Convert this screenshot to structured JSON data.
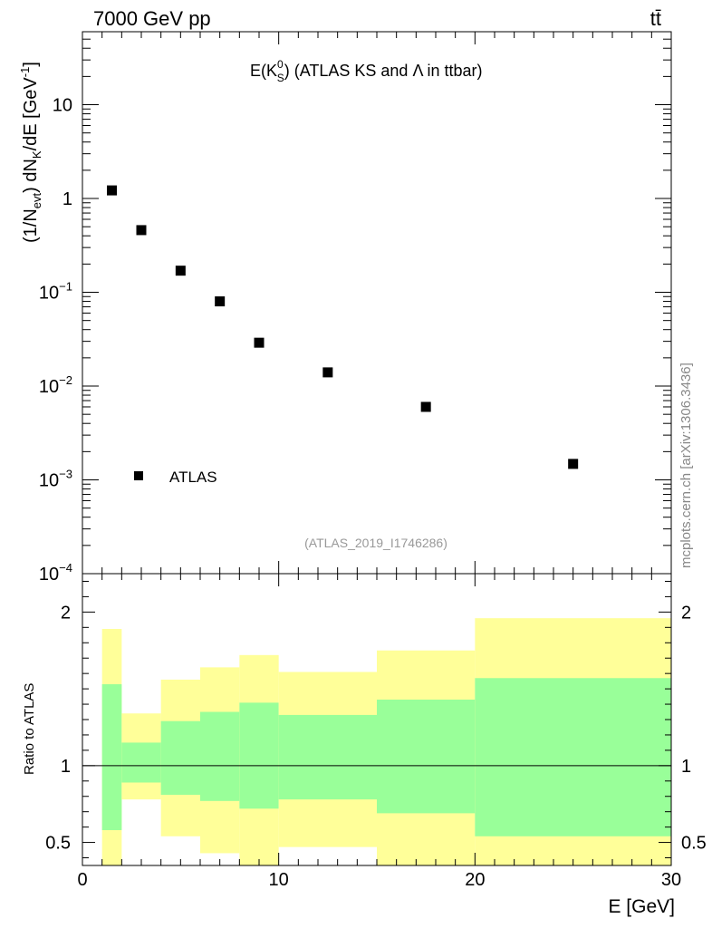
{
  "header": {
    "left": "7000 GeV pp",
    "right": "tt̄"
  },
  "watermark": "mcplots.cern.ch [arXiv:1306.3436]",
  "analysis_id": "(ATLAS_2019_I1746286)",
  "chart_data": [
    {
      "type": "scatter",
      "title": "E(K⁰S) (ATLAS KS and Λ in ttbar)",
      "title_main": "E(K",
      "title_sup": "0",
      "title_sub": "S",
      "title_tail": ") (ATLAS KS and Λ in ttbar)",
      "ylabel": "(1/Nevt) dNK/dE [GeV⁻¹]",
      "ylabel_parts": {
        "a": "(1/N",
        "evt": "evt",
        "b": ") dN",
        "k": "K",
        "c": "/dE [GeV",
        "exp": "-1",
        "d": "]"
      },
      "yscale": "log",
      "ylim": [
        0.0001,
        60
      ],
      "xlim": [
        0,
        30
      ],
      "ytick_labels": [
        {
          "value": 10,
          "base": "10",
          "exp": ""
        },
        {
          "value": 1,
          "base": "1",
          "exp": ""
        },
        {
          "value": 0.1,
          "base": "10",
          "exp": "−1"
        },
        {
          "value": 0.01,
          "base": "10",
          "exp": "−2"
        },
        {
          "value": 0.001,
          "base": "10",
          "exp": "−3"
        },
        {
          "value": 0.0001,
          "base": "10",
          "exp": "−4"
        }
      ],
      "legend": {
        "label": "ATLAS",
        "marker_color": "#000000",
        "position": "bottom-left"
      },
      "series": [
        {
          "name": "ATLAS",
          "color": "#000000",
          "marker": "square",
          "x": [
            1.5,
            3.0,
            5.0,
            7.0,
            9.0,
            12.5,
            17.5,
            25.0
          ],
          "values": [
            1.22,
            0.46,
            0.17,
            0.08,
            0.029,
            0.014,
            0.006,
            0.00148
          ]
        }
      ]
    },
    {
      "type": "area",
      "ylabel": "Ratio to ATLAS",
      "xlabel": "E [GeV]",
      "xlim": [
        0,
        30
      ],
      "ylim": [
        0.35,
        2.25
      ],
      "xticks": [
        0,
        10,
        20,
        30
      ],
      "yticks": [
        0.5,
        1,
        2
      ],
      "ytick_labels": [
        "0.5",
        "1",
        "2"
      ],
      "reference_line": 1,
      "colors": {
        "outer_band": "#ffff99",
        "inner_band": "#99ff99",
        "line": "#000000"
      },
      "bins": [
        {
          "x0": 1,
          "x1": 2,
          "inner_low": 0.58,
          "inner_high": 1.53,
          "outer_low": 0.35,
          "outer_high": 1.89
        },
        {
          "x0": 2,
          "x1": 4,
          "inner_low": 0.89,
          "inner_high": 1.15,
          "outer_low": 0.78,
          "outer_high": 1.34
        },
        {
          "x0": 4,
          "x1": 6,
          "inner_low": 0.81,
          "inner_high": 1.29,
          "outer_low": 0.54,
          "outer_high": 1.56
        },
        {
          "x0": 6,
          "x1": 8,
          "inner_low": 0.77,
          "inner_high": 1.35,
          "outer_low": 0.43,
          "outer_high": 1.64
        },
        {
          "x0": 8,
          "x1": 10,
          "inner_low": 0.72,
          "inner_high": 1.41,
          "outer_low": 0.35,
          "outer_high": 1.72
        },
        {
          "x0": 10,
          "x1": 15,
          "inner_low": 0.78,
          "inner_high": 1.33,
          "outer_low": 0.47,
          "outer_high": 1.61
        },
        {
          "x0": 15,
          "x1": 20,
          "inner_low": 0.69,
          "inner_high": 1.43,
          "outer_low": 0.35,
          "outer_high": 1.75
        },
        {
          "x0": 20,
          "x1": 30,
          "inner_low": 0.54,
          "inner_high": 1.57,
          "outer_low": 0.35,
          "outer_high": 1.96
        }
      ]
    }
  ]
}
